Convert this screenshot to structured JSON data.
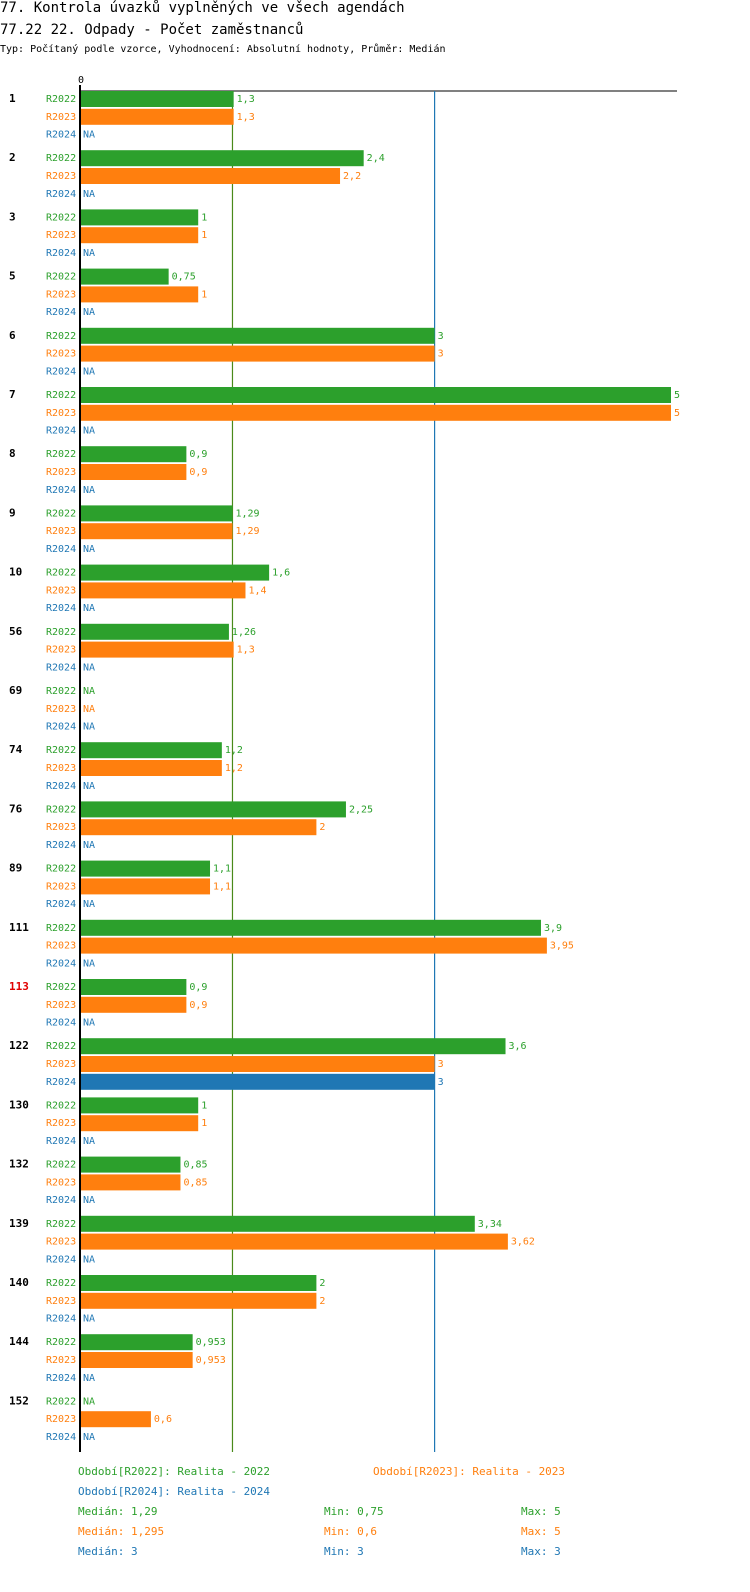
{
  "header": {
    "title": "77. Kontrola úvazků vyplněných ve všech agendách",
    "subtitle": "77.22 22. Odpady - Počet zaměstnanců",
    "meta": "Typ: Počítaný podle vzorce, Vyhodnocení: Absolutní hodnoty, Průměr: Medián"
  },
  "colors": {
    "R2022": "#2ca02c",
    "R2023": "#ff7f0e",
    "R2024": "#1f77b4",
    "highlight": "#e00000",
    "median_line": "#4a8a1a",
    "ref_line": "#1f77b4"
  },
  "chart_data": {
    "type": "bar",
    "orientation": "horizontal",
    "x_tick_zero": "0",
    "xlim": [
      0,
      5
    ],
    "reference_lines": [
      {
        "name": "median-2022",
        "value": 1.29,
        "color": "#4a8a1a"
      },
      {
        "name": "median-2024",
        "value": 3,
        "color": "#1f77b4"
      }
    ],
    "series_names": [
      "R2022",
      "R2023",
      "R2024"
    ],
    "groups": [
      {
        "id": "1",
        "highlight": false,
        "values": [
          1.3,
          1.3,
          null
        ],
        "labels": [
          "1,3",
          "1,3",
          "NA"
        ]
      },
      {
        "id": "2",
        "highlight": false,
        "values": [
          2.4,
          2.2,
          null
        ],
        "labels": [
          "2,4",
          "2,2",
          "NA"
        ]
      },
      {
        "id": "3",
        "highlight": false,
        "values": [
          1,
          1,
          null
        ],
        "labels": [
          "1",
          "1",
          "NA"
        ]
      },
      {
        "id": "5",
        "highlight": false,
        "values": [
          0.75,
          1,
          null
        ],
        "labels": [
          "0,75",
          "1",
          "NA"
        ]
      },
      {
        "id": "6",
        "highlight": false,
        "values": [
          3,
          3,
          null
        ],
        "labels": [
          "3",
          "3",
          "NA"
        ]
      },
      {
        "id": "7",
        "highlight": false,
        "values": [
          5,
          5,
          null
        ],
        "labels": [
          "5",
          "5",
          "NA"
        ]
      },
      {
        "id": "8",
        "highlight": false,
        "values": [
          0.9,
          0.9,
          null
        ],
        "labels": [
          "0,9",
          "0,9",
          "NA"
        ]
      },
      {
        "id": "9",
        "highlight": false,
        "values": [
          1.29,
          1.29,
          null
        ],
        "labels": [
          "1,29",
          "1,29",
          "NA"
        ]
      },
      {
        "id": "10",
        "highlight": false,
        "values": [
          1.6,
          1.4,
          null
        ],
        "labels": [
          "1,6",
          "1,4",
          "NA"
        ]
      },
      {
        "id": "56",
        "highlight": false,
        "values": [
          1.26,
          1.3,
          null
        ],
        "labels": [
          "1,26",
          "1,3",
          "NA"
        ]
      },
      {
        "id": "69",
        "highlight": false,
        "values": [
          null,
          null,
          null
        ],
        "labels": [
          "NA",
          "NA",
          "NA"
        ]
      },
      {
        "id": "74",
        "highlight": false,
        "values": [
          1.2,
          1.2,
          null
        ],
        "labels": [
          "1,2",
          "1,2",
          "NA"
        ]
      },
      {
        "id": "76",
        "highlight": false,
        "values": [
          2.25,
          2,
          null
        ],
        "labels": [
          "2,25",
          "2",
          "NA"
        ]
      },
      {
        "id": "89",
        "highlight": false,
        "values": [
          1.1,
          1.1,
          null
        ],
        "labels": [
          "1,1",
          "1,1",
          "NA"
        ]
      },
      {
        "id": "111",
        "highlight": false,
        "values": [
          3.9,
          3.95,
          null
        ],
        "labels": [
          "3,9",
          "3,95",
          "NA"
        ]
      },
      {
        "id": "113",
        "highlight": true,
        "values": [
          0.9,
          0.9,
          null
        ],
        "labels": [
          "0,9",
          "0,9",
          "NA"
        ]
      },
      {
        "id": "122",
        "highlight": false,
        "values": [
          3.6,
          3,
          3
        ],
        "labels": [
          "3,6",
          "3",
          "3"
        ]
      },
      {
        "id": "130",
        "highlight": false,
        "values": [
          1,
          1,
          null
        ],
        "labels": [
          "1",
          "1",
          "NA"
        ]
      },
      {
        "id": "132",
        "highlight": false,
        "values": [
          0.85,
          0.85,
          null
        ],
        "labels": [
          "0,85",
          "0,85",
          "NA"
        ]
      },
      {
        "id": "139",
        "highlight": false,
        "values": [
          3.34,
          3.62,
          null
        ],
        "labels": [
          "3,34",
          "3,62",
          "NA"
        ]
      },
      {
        "id": "140",
        "highlight": false,
        "values": [
          2,
          2,
          null
        ],
        "labels": [
          "2",
          "2",
          "NA"
        ]
      },
      {
        "id": "144",
        "highlight": false,
        "values": [
          0.953,
          0.953,
          null
        ],
        "labels": [
          "0,953",
          "0,953",
          "NA"
        ]
      },
      {
        "id": "152",
        "highlight": false,
        "values": [
          null,
          0.6,
          null
        ],
        "labels": [
          "NA",
          "0,6",
          "NA"
        ]
      }
    ]
  },
  "legend": {
    "period_R2022": "Období[R2022]: Realita - 2022",
    "period_R2023": "Období[R2023]: Realita - 2023",
    "period_R2024": "Období[R2024]: Realita - 2024",
    "stats": [
      {
        "series": "R2022",
        "median": "Medián: 1,29",
        "min": "Min: 0,75",
        "max": "Max: 5"
      },
      {
        "series": "R2023",
        "median": "Medián: 1,295",
        "min": "Min: 0,6",
        "max": "Max: 5"
      },
      {
        "series": "R2024",
        "median": "Medián: 3",
        "min": "Min: 3",
        "max": "Max: 3"
      }
    ]
  }
}
